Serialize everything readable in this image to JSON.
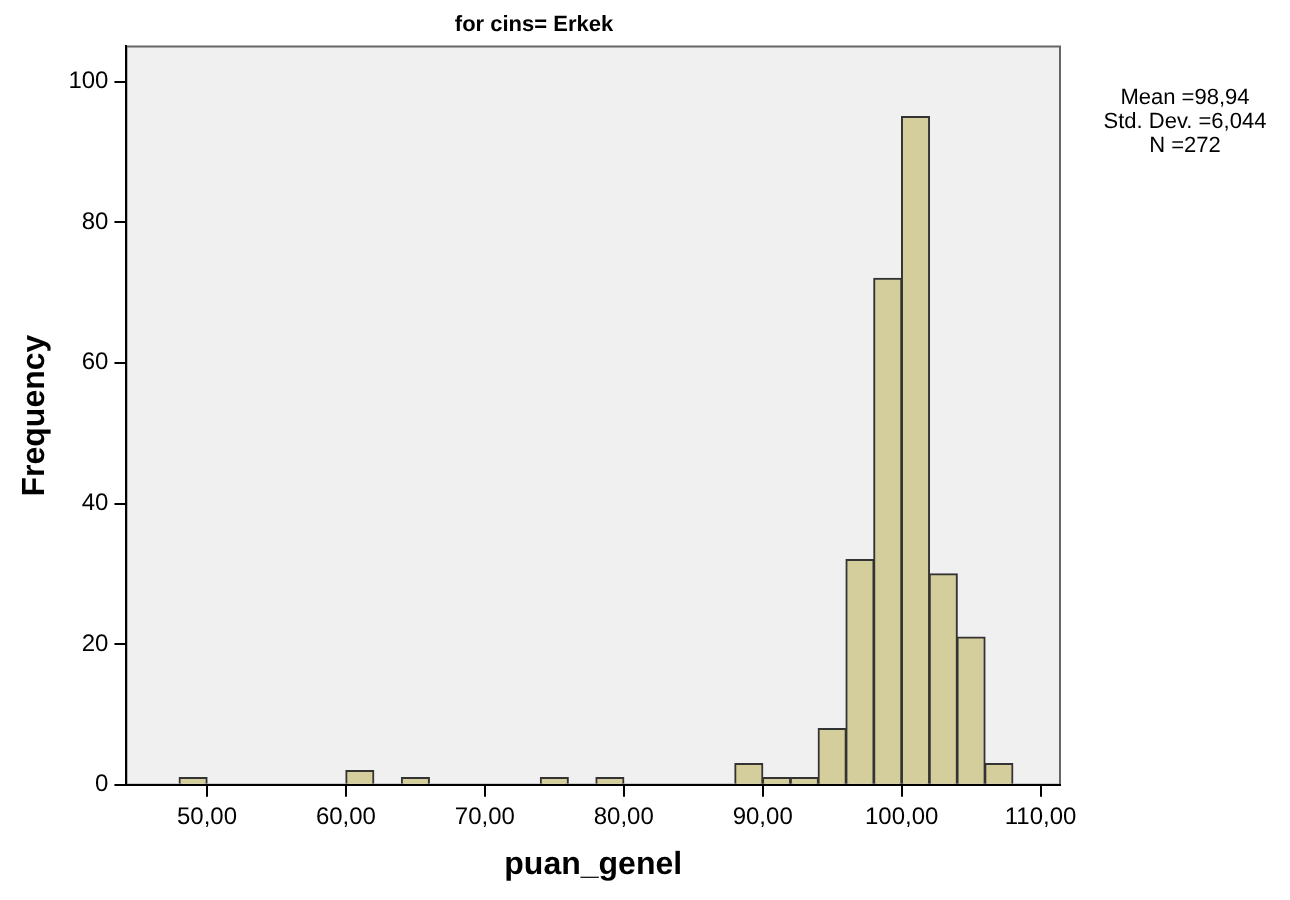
{
  "chart_data": {
    "type": "histogram",
    "title": "for cins= Erkek",
    "xlabel": "puan_genel",
    "ylabel": "Frequency",
    "bins": [
      48,
      50,
      52,
      54,
      56,
      58,
      60,
      62,
      64,
      66,
      68,
      70,
      72,
      74,
      76,
      78,
      80,
      82,
      84,
      86,
      88,
      90,
      92,
      94,
      96,
      98,
      100,
      102,
      104,
      106,
      108
    ],
    "values": [
      1,
      0,
      0,
      0,
      0,
      0,
      2,
      0,
      1,
      0,
      0,
      0,
      0,
      1,
      0,
      1,
      0,
      0,
      0,
      0,
      3,
      1,
      1,
      8,
      32,
      72,
      95,
      30,
      21,
      3
    ],
    "color": "#d3ce9b",
    "xlim": [
      44.2,
      111.4
    ],
    "xticks": [
      {
        "value": 50,
        "label": "50,00"
      },
      {
        "value": 60,
        "label": "60,00"
      },
      {
        "value": 70,
        "label": "70,00"
      },
      {
        "value": 80,
        "label": "80,00"
      },
      {
        "value": 90,
        "label": "90,00"
      },
      {
        "value": 100,
        "label": "100,00"
      },
      {
        "value": 110,
        "label": "110,00"
      }
    ],
    "ylim": [
      0,
      105
    ],
    "yticks": [
      0,
      20,
      40,
      60,
      80,
      100
    ],
    "grid": false,
    "legend": false,
    "annotations": [
      "Mean =98,94",
      "Std. Dev. =6,044",
      "N =272"
    ]
  }
}
